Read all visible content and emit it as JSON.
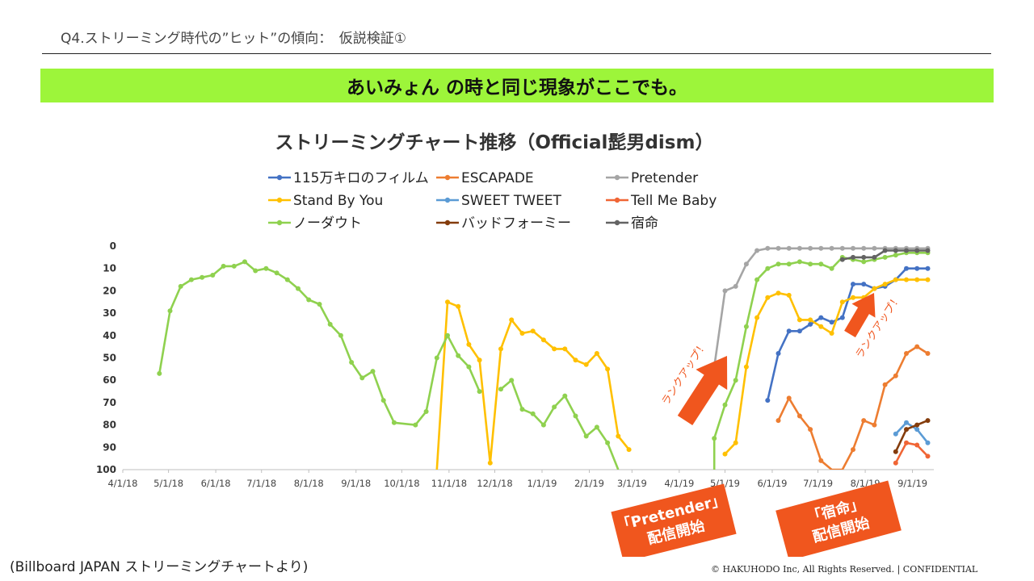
{
  "header": {
    "title": "Q4.ストリーミング時代の”ヒット”の傾向：　仮説検証①",
    "banner": "あいみょん の時と同じ現象がここでも。"
  },
  "footer": {
    "source": "(Billboard JAPAN ストリーミングチャートより)",
    "copyright": "© HAKUHODO Inc, All Rights Reserved. | CONFIDENTIAL"
  },
  "annotations": {
    "rankup": "ランクアップ！",
    "callout_pretender": [
      "「Pretender」",
      "配信開始"
    ],
    "callout_shukumei": [
      "「宿命」",
      "配信開始"
    ],
    "arrow_color": "#f0561e",
    "callout_color": "#f0561e"
  },
  "chart_data": {
    "type": "line",
    "title": "ストリーミングチャート推移（Official髭男dism）",
    "x_type": "date",
    "x_ticks": [
      "4/1/18",
      "5/1/18",
      "6/1/18",
      "7/1/18",
      "8/1/18",
      "9/1/18",
      "10/1/18",
      "11/1/18",
      "12/1/18",
      "1/1/19",
      "2/1/19",
      "3/1/19",
      "4/1/19",
      "5/1/19",
      "6/1/19",
      "7/1/19",
      "8/1/19",
      "9/1/19"
    ],
    "xlim": [
      "2018-04-01",
      "2019-09-15"
    ],
    "ylim": [
      100,
      0
    ],
    "y_inverted": true,
    "y_ticks": [
      0,
      10,
      20,
      30,
      40,
      50,
      60,
      70,
      80,
      90,
      100
    ],
    "legend_position": "top",
    "series": [
      {
        "name": "115万キロのフィルム",
        "color": "#4472c4",
        "points": [
          [
            "2019-05-29",
            69
          ],
          [
            "2019-06-05",
            48
          ],
          [
            "2019-06-12",
            38
          ],
          [
            "2019-06-19",
            38
          ],
          [
            "2019-06-26",
            35
          ],
          [
            "2019-07-03",
            32
          ],
          [
            "2019-07-10",
            34
          ],
          [
            "2019-07-17",
            32
          ],
          [
            "2019-07-24",
            17
          ],
          [
            "2019-07-31",
            17
          ],
          [
            "2019-08-07",
            19
          ],
          [
            "2019-08-14",
            18
          ],
          [
            "2019-08-21",
            15
          ],
          [
            "2019-08-28",
            10
          ],
          [
            "2019-09-04",
            10
          ],
          [
            "2019-09-11",
            10
          ]
        ]
      },
      {
        "name": "ESCAPADE",
        "color": "#ed7d31",
        "points": [
          [
            "2019-06-05",
            78
          ],
          [
            "2019-06-12",
            68
          ],
          [
            "2019-06-19",
            76
          ],
          [
            "2019-06-26",
            82
          ],
          [
            "2019-07-03",
            96
          ],
          [
            "2019-07-10",
            100
          ],
          [
            "2019-07-17",
            100
          ],
          [
            "2019-07-24",
            91
          ],
          [
            "2019-07-31",
            78
          ],
          [
            "2019-08-07",
            80
          ],
          [
            "2019-08-14",
            62
          ],
          [
            "2019-08-21",
            58
          ],
          [
            "2019-08-28",
            48
          ],
          [
            "2019-09-04",
            45
          ],
          [
            "2019-09-11",
            48
          ]
        ]
      },
      {
        "name": "Pretender",
        "color": "#a5a5a5",
        "points": [
          [
            "2019-04-24",
            54
          ],
          [
            "2019-05-01",
            20
          ],
          [
            "2019-05-08",
            18
          ],
          [
            "2019-05-15",
            8
          ],
          [
            "2019-05-22",
            2
          ],
          [
            "2019-05-29",
            1
          ],
          [
            "2019-06-05",
            1
          ],
          [
            "2019-06-12",
            1
          ],
          [
            "2019-06-19",
            1
          ],
          [
            "2019-06-26",
            1
          ],
          [
            "2019-07-03",
            1
          ],
          [
            "2019-07-10",
            1
          ],
          [
            "2019-07-17",
            1
          ],
          [
            "2019-07-24",
            1
          ],
          [
            "2019-07-31",
            1
          ],
          [
            "2019-08-07",
            1
          ],
          [
            "2019-08-14",
            1
          ],
          [
            "2019-08-21",
            1
          ],
          [
            "2019-08-28",
            1
          ],
          [
            "2019-09-04",
            1
          ],
          [
            "2019-09-11",
            1
          ]
        ]
      },
      {
        "name": "Stand By You",
        "color": "#ffc000",
        "points": [
          [
            "2018-10-24",
            100
          ],
          [
            "2018-10-31",
            25
          ],
          [
            "2018-11-07",
            27
          ],
          [
            "2018-11-14",
            44
          ],
          [
            "2018-11-21",
            51
          ],
          [
            "2018-11-28",
            97
          ],
          [
            "2018-12-05",
            46
          ],
          [
            "2018-12-12",
            33
          ],
          [
            "2018-12-19",
            39
          ],
          [
            "2018-12-26",
            38
          ],
          [
            "2019-01-02",
            42
          ],
          [
            "2019-01-09",
            46
          ],
          [
            "2019-01-16",
            46
          ],
          [
            "2019-01-23",
            51
          ],
          [
            "2019-01-30",
            53
          ],
          [
            "2019-02-06",
            48
          ],
          [
            "2019-02-13",
            55
          ],
          [
            "2019-02-20",
            85
          ],
          [
            "2019-02-27",
            91
          ],
          null,
          [
            "2019-05-01",
            93
          ],
          [
            "2019-05-08",
            88
          ],
          [
            "2019-05-15",
            54
          ],
          [
            "2019-05-22",
            32
          ],
          [
            "2019-05-29",
            23
          ],
          [
            "2019-06-05",
            21
          ],
          [
            "2019-06-12",
            22
          ],
          [
            "2019-06-19",
            33
          ],
          [
            "2019-06-26",
            33
          ],
          [
            "2019-07-03",
            36
          ],
          [
            "2019-07-10",
            39
          ],
          [
            "2019-07-17",
            25
          ],
          [
            "2019-07-24",
            23
          ],
          [
            "2019-07-31",
            23
          ],
          [
            "2019-08-07",
            19
          ],
          [
            "2019-08-14",
            17
          ],
          [
            "2019-08-21",
            15
          ],
          [
            "2019-08-28",
            15
          ],
          [
            "2019-09-04",
            15
          ],
          [
            "2019-09-11",
            15
          ]
        ]
      },
      {
        "name": "SWEET TWEET",
        "color": "#5b9bd5",
        "points": [
          [
            "2019-08-21",
            84
          ],
          [
            "2019-08-28",
            79
          ],
          [
            "2019-09-04",
            82
          ],
          [
            "2019-09-11",
            88
          ]
        ]
      },
      {
        "name": "Tell Me Baby",
        "color": "#f06535",
        "points": [
          [
            "2019-08-21",
            97
          ],
          [
            "2019-08-28",
            88
          ],
          [
            "2019-09-04",
            89
          ],
          [
            "2019-09-11",
            94
          ]
        ]
      },
      {
        "name": "ノーダウト",
        "color": "#8fd14f",
        "points": [
          [
            "2018-04-25",
            57
          ],
          [
            "2018-05-02",
            29
          ],
          [
            "2018-05-09",
            18
          ],
          [
            "2018-05-16",
            15
          ],
          [
            "2018-05-23",
            14
          ],
          [
            "2018-05-30",
            13
          ],
          [
            "2018-06-06",
            9
          ],
          [
            "2018-06-13",
            9
          ],
          [
            "2018-06-20",
            7
          ],
          [
            "2018-06-27",
            11
          ],
          [
            "2018-07-04",
            10
          ],
          [
            "2018-07-11",
            12
          ],
          [
            "2018-07-18",
            15
          ],
          [
            "2018-07-25",
            19
          ],
          [
            "2018-08-01",
            24
          ],
          [
            "2018-08-08",
            26
          ],
          [
            "2018-08-15",
            35
          ],
          [
            "2018-08-22",
            40
          ],
          [
            "2018-08-29",
            52
          ],
          [
            "2018-09-05",
            59
          ],
          [
            "2018-09-12",
            56
          ],
          [
            "2018-09-19",
            69
          ],
          [
            "2018-09-26",
            79
          ],
          [
            "2018-10-10",
            80
          ],
          [
            "2018-10-17",
            74
          ],
          [
            "2018-10-24",
            50
          ],
          [
            "2018-10-31",
            40
          ],
          [
            "2018-11-07",
            49
          ],
          [
            "2018-11-14",
            54
          ],
          [
            "2018-11-21",
            65
          ],
          [
            "2018-11-28",
            null
          ],
          [
            "2018-12-05",
            64
          ],
          [
            "2018-12-12",
            60
          ],
          [
            "2018-12-19",
            73
          ],
          [
            "2018-12-26",
            75
          ],
          [
            "2019-01-02",
            80
          ],
          [
            "2019-01-09",
            72
          ],
          [
            "2019-01-16",
            67
          ],
          [
            "2019-01-23",
            76
          ],
          [
            "2019-01-30",
            85
          ],
          [
            "2019-02-06",
            81
          ],
          [
            "2019-02-13",
            88
          ],
          [
            "2019-02-20",
            100
          ],
          null,
          [
            "2019-04-24",
            100
          ],
          [
            "2019-04-24",
            86
          ],
          [
            "2019-05-01",
            71
          ],
          [
            "2019-05-08",
            60
          ],
          [
            "2019-05-15",
            36
          ],
          [
            "2019-05-22",
            15
          ],
          [
            "2019-05-29",
            10
          ],
          [
            "2019-06-05",
            8
          ],
          [
            "2019-06-12",
            8
          ],
          [
            "2019-06-19",
            7
          ],
          [
            "2019-06-26",
            8
          ],
          [
            "2019-07-03",
            8
          ],
          [
            "2019-07-10",
            10
          ],
          [
            "2019-07-17",
            5
          ],
          [
            "2019-07-24",
            6
          ],
          [
            "2019-07-31",
            7
          ],
          [
            "2019-08-07",
            6
          ],
          [
            "2019-08-14",
            5
          ],
          [
            "2019-08-21",
            4
          ],
          [
            "2019-08-28",
            3
          ],
          [
            "2019-09-04",
            3
          ],
          [
            "2019-09-11",
            3
          ]
        ]
      },
      {
        "name": "バッドフォーミー",
        "color": "#843c0c",
        "points": [
          [
            "2019-08-21",
            92
          ],
          [
            "2019-08-28",
            82
          ],
          [
            "2019-09-04",
            80
          ],
          [
            "2019-09-11",
            78
          ]
        ]
      },
      {
        "name": "宿命",
        "color": "#636363",
        "points": [
          [
            "2019-07-17",
            6
          ],
          [
            "2019-07-24",
            5
          ],
          [
            "2019-07-31",
            5
          ],
          [
            "2019-08-07",
            5
          ],
          [
            "2019-08-14",
            2
          ],
          [
            "2019-08-21",
            2
          ],
          [
            "2019-08-28",
            2
          ],
          [
            "2019-09-04",
            2
          ],
          [
            "2019-09-11",
            2
          ]
        ]
      }
    ]
  }
}
